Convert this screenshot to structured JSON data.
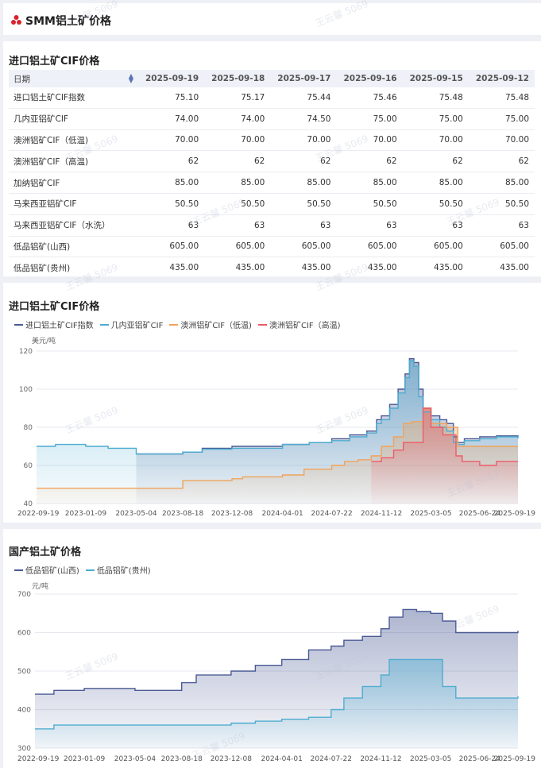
{
  "page": {
    "title": "SMM铝土矿价格",
    "brand_color": "#d9232d"
  },
  "price_table": {
    "section_title": "进口铝土矿CIF价格",
    "header_first": "日期",
    "dates": [
      "2025-09-19",
      "2025-09-18",
      "2025-09-17",
      "2025-09-16",
      "2025-09-15",
      "2025-09-12"
    ],
    "rows": [
      {
        "name": "进口铝土矿CIF指数",
        "values": [
          "75.10",
          "75.17",
          "75.44",
          "75.46",
          "75.48",
          "75.48"
        ]
      },
      {
        "name": "几内亚铝矿CIF",
        "values": [
          "74.00",
          "74.00",
          "74.50",
          "75.00",
          "75.00",
          "75.00"
        ]
      },
      {
        "name": "澳洲铝矿CIF（低温)",
        "values": [
          "70.00",
          "70.00",
          "70.00",
          "70.00",
          "70.00",
          "70.00"
        ]
      },
      {
        "name": "澳洲铝矿CIF（高温)",
        "values": [
          "62",
          "62",
          "62",
          "62",
          "62",
          "62"
        ]
      },
      {
        "name": "加纳铝矿CIF",
        "values": [
          "85.00",
          "85.00",
          "85.00",
          "85.00",
          "85.00",
          "85.00"
        ]
      },
      {
        "name": "马来西亚铝矿CIF",
        "values": [
          "50.50",
          "50.50",
          "50.50",
          "50.50",
          "50.50",
          "50.50"
        ]
      },
      {
        "name": "马来西亚铝矿CIF（水洗）",
        "values": [
          "63",
          "63",
          "63",
          "63",
          "63",
          "63"
        ]
      },
      {
        "name": "低品铝矿(山西)",
        "values": [
          "605.00",
          "605.00",
          "605.00",
          "605.00",
          "605.00",
          "605.00"
        ]
      },
      {
        "name": "低品铝矿(贵州)",
        "values": [
          "435.00",
          "435.00",
          "435.00",
          "435.00",
          "435.00",
          "435.00"
        ]
      }
    ]
  },
  "watermark": "王云馨 5069",
  "chart_data": [
    {
      "type": "line",
      "title": "进口铝土矿CIF价格",
      "ylabel": "美元/吨",
      "ylim": [
        40,
        120
      ],
      "yticks": [
        40,
        60,
        80,
        100,
        120
      ],
      "xticks": [
        "2022-09-19",
        "2023-01-09",
        "2023-05-04",
        "2023-08-18",
        "2023-12-08",
        "2024-04-01",
        "2024-07-22",
        "2024-11-12",
        "2025-03-05",
        "2025-06-24",
        "2025-09-19"
      ],
      "legend_position": "top-left",
      "grid": true,
      "series": [
        {
          "name": "进口铝土矿CIF指数",
          "color": "#4a5a94",
          "points": [
            [
              "2023-05-04",
              66
            ],
            [
              "2023-07-20",
              66
            ],
            [
              "2023-08-18",
              67
            ],
            [
              "2023-10-01",
              69
            ],
            [
              "2023-12-08",
              70
            ],
            [
              "2024-02-01",
              70
            ],
            [
              "2024-04-01",
              71
            ],
            [
              "2024-06-01",
              72
            ],
            [
              "2024-07-22",
              74
            ],
            [
              "2024-09-01",
              76
            ],
            [
              "2024-10-10",
              78
            ],
            [
              "2024-11-01",
              84
            ],
            [
              "2024-11-12",
              86
            ],
            [
              "2024-12-01",
              92
            ],
            [
              "2024-12-20",
              100
            ],
            [
              "2025-01-05",
              108
            ],
            [
              "2025-01-15",
              116
            ],
            [
              "2025-01-25",
              114
            ],
            [
              "2025-02-05",
              100
            ],
            [
              "2025-02-15",
              90
            ],
            [
              "2025-03-05",
              86
            ],
            [
              "2025-03-25",
              84
            ],
            [
              "2025-04-10",
              82
            ],
            [
              "2025-04-25",
              75
            ],
            [
              "2025-05-05",
              72
            ],
            [
              "2025-05-20",
              74
            ],
            [
              "2025-06-24",
              75
            ],
            [
              "2025-08-01",
              75.5
            ],
            [
              "2025-09-19",
              75.1
            ]
          ]
        },
        {
          "name": "几内亚铝矿CIF",
          "color": "#4dacd0",
          "points": [
            [
              "2022-09-19",
              70
            ],
            [
              "2022-11-01",
              71
            ],
            [
              "2023-01-09",
              70
            ],
            [
              "2023-03-01",
              69
            ],
            [
              "2023-05-04",
              66
            ],
            [
              "2023-08-18",
              67
            ],
            [
              "2023-10-01",
              68.5
            ],
            [
              "2023-12-08",
              69
            ],
            [
              "2024-04-01",
              71
            ],
            [
              "2024-06-01",
              72
            ],
            [
              "2024-07-22",
              73
            ],
            [
              "2024-09-01",
              75
            ],
            [
              "2024-10-10",
              77
            ],
            [
              "2024-11-01",
              82
            ],
            [
              "2024-11-12",
              84
            ],
            [
              "2024-12-01",
              90
            ],
            [
              "2024-12-20",
              98
            ],
            [
              "2025-01-05",
              106
            ],
            [
              "2025-01-15",
              115
            ],
            [
              "2025-01-25",
              112
            ],
            [
              "2025-02-05",
              96
            ],
            [
              "2025-02-15",
              88
            ],
            [
              "2025-03-05",
              84
            ],
            [
              "2025-03-25",
              80
            ],
            [
              "2025-04-10",
              78
            ],
            [
              "2025-04-25",
              72
            ],
            [
              "2025-05-05",
              71
            ],
            [
              "2025-05-20",
              73
            ],
            [
              "2025-06-24",
              74
            ],
            [
              "2025-08-01",
              75
            ],
            [
              "2025-09-19",
              74
            ]
          ]
        },
        {
          "name": "澳洲铝矿CIF（低温)",
          "color": "#f0a35a",
          "points": [
            [
              "2022-09-19",
              48
            ],
            [
              "2023-08-10",
              48
            ],
            [
              "2023-08-18",
              52
            ],
            [
              "2023-12-08",
              53
            ],
            [
              "2024-01-01",
              54
            ],
            [
              "2024-04-01",
              55
            ],
            [
              "2024-05-20",
              58
            ],
            [
              "2024-07-22",
              60
            ],
            [
              "2024-08-20",
              62
            ],
            [
              "2024-09-20",
              63
            ],
            [
              "2024-10-20",
              65
            ],
            [
              "2024-11-12",
              70
            ],
            [
              "2024-12-10",
              75
            ],
            [
              "2025-01-01",
              82
            ],
            [
              "2025-01-20",
              83
            ],
            [
              "2025-02-15",
              90
            ],
            [
              "2025-03-05",
              82
            ],
            [
              "2025-04-10",
              80
            ],
            [
              "2025-05-05",
              70
            ],
            [
              "2025-06-24",
              70
            ],
            [
              "2025-09-19",
              70
            ]
          ]
        },
        {
          "name": "澳洲铝矿CIF（高温)",
          "color": "#ef5a66",
          "points": [
            [
              "2024-10-20",
              62
            ],
            [
              "2024-11-12",
              64
            ],
            [
              "2024-12-10",
              68
            ],
            [
              "2025-01-01",
              72
            ],
            [
              "2025-02-05",
              72
            ],
            [
              "2025-02-15",
              90
            ],
            [
              "2025-03-05",
              80
            ],
            [
              "2025-04-01",
              76
            ],
            [
              "2025-05-01",
              65
            ],
            [
              "2025-05-15",
              62
            ],
            [
              "2025-06-24",
              60
            ],
            [
              "2025-08-01",
              62
            ],
            [
              "2025-09-19",
              62
            ]
          ]
        }
      ]
    },
    {
      "type": "line",
      "title": "国产铝土矿价格",
      "ylabel": "元/吨",
      "ylim": [
        300,
        700
      ],
      "yticks": [
        300,
        400,
        500,
        600,
        700
      ],
      "xticks": [
        "2022-09-19",
        "2023-01-09",
        "2023-05-04",
        "2023-08-18",
        "2023-12-08",
        "2024-04-01",
        "2024-07-22",
        "2024-11-12",
        "2025-03-05",
        "2025-06-24",
        "2025-09-19"
      ],
      "legend_position": "top-left",
      "grid": true,
      "series": [
        {
          "name": "低品铝矿(山西)",
          "color": "#4a5a94",
          "points": [
            [
              "2022-09-19",
              440
            ],
            [
              "2022-11-01",
              450
            ],
            [
              "2023-01-09",
              455
            ],
            [
              "2023-03-01",
              455
            ],
            [
              "2023-05-04",
              450
            ],
            [
              "2023-07-01",
              450
            ],
            [
              "2023-08-18",
              470
            ],
            [
              "2023-09-20",
              490
            ],
            [
              "2023-12-08",
              500
            ],
            [
              "2024-02-01",
              515
            ],
            [
              "2024-04-01",
              530
            ],
            [
              "2024-06-01",
              555
            ],
            [
              "2024-07-22",
              565
            ],
            [
              "2024-08-20",
              580
            ],
            [
              "2024-10-01",
              590
            ],
            [
              "2024-11-12",
              610
            ],
            [
              "2024-12-01",
              640
            ],
            [
              "2025-01-01",
              660
            ],
            [
              "2025-02-01",
              655
            ],
            [
              "2025-03-05",
              650
            ],
            [
              "2025-04-01",
              630
            ],
            [
              "2025-05-01",
              600
            ],
            [
              "2025-06-24",
              600
            ],
            [
              "2025-09-19",
              605
            ]
          ]
        },
        {
          "name": "低品铝矿(贵州)",
          "color": "#4dacd0",
          "points": [
            [
              "2022-09-19",
              350
            ],
            [
              "2022-11-01",
              360
            ],
            [
              "2023-01-09",
              360
            ],
            [
              "2023-05-04",
              360
            ],
            [
              "2023-08-18",
              360
            ],
            [
              "2023-12-08",
              365
            ],
            [
              "2024-02-01",
              370
            ],
            [
              "2024-04-01",
              375
            ],
            [
              "2024-06-01",
              380
            ],
            [
              "2024-07-22",
              400
            ],
            [
              "2024-08-20",
              430
            ],
            [
              "2024-10-01",
              460
            ],
            [
              "2024-11-12",
              490
            ],
            [
              "2024-12-01",
              530
            ],
            [
              "2025-03-05",
              530
            ],
            [
              "2025-04-01",
              460
            ],
            [
              "2025-05-01",
              430
            ],
            [
              "2025-06-24",
              430
            ],
            [
              "2025-09-19",
              435
            ]
          ]
        }
      ]
    }
  ]
}
